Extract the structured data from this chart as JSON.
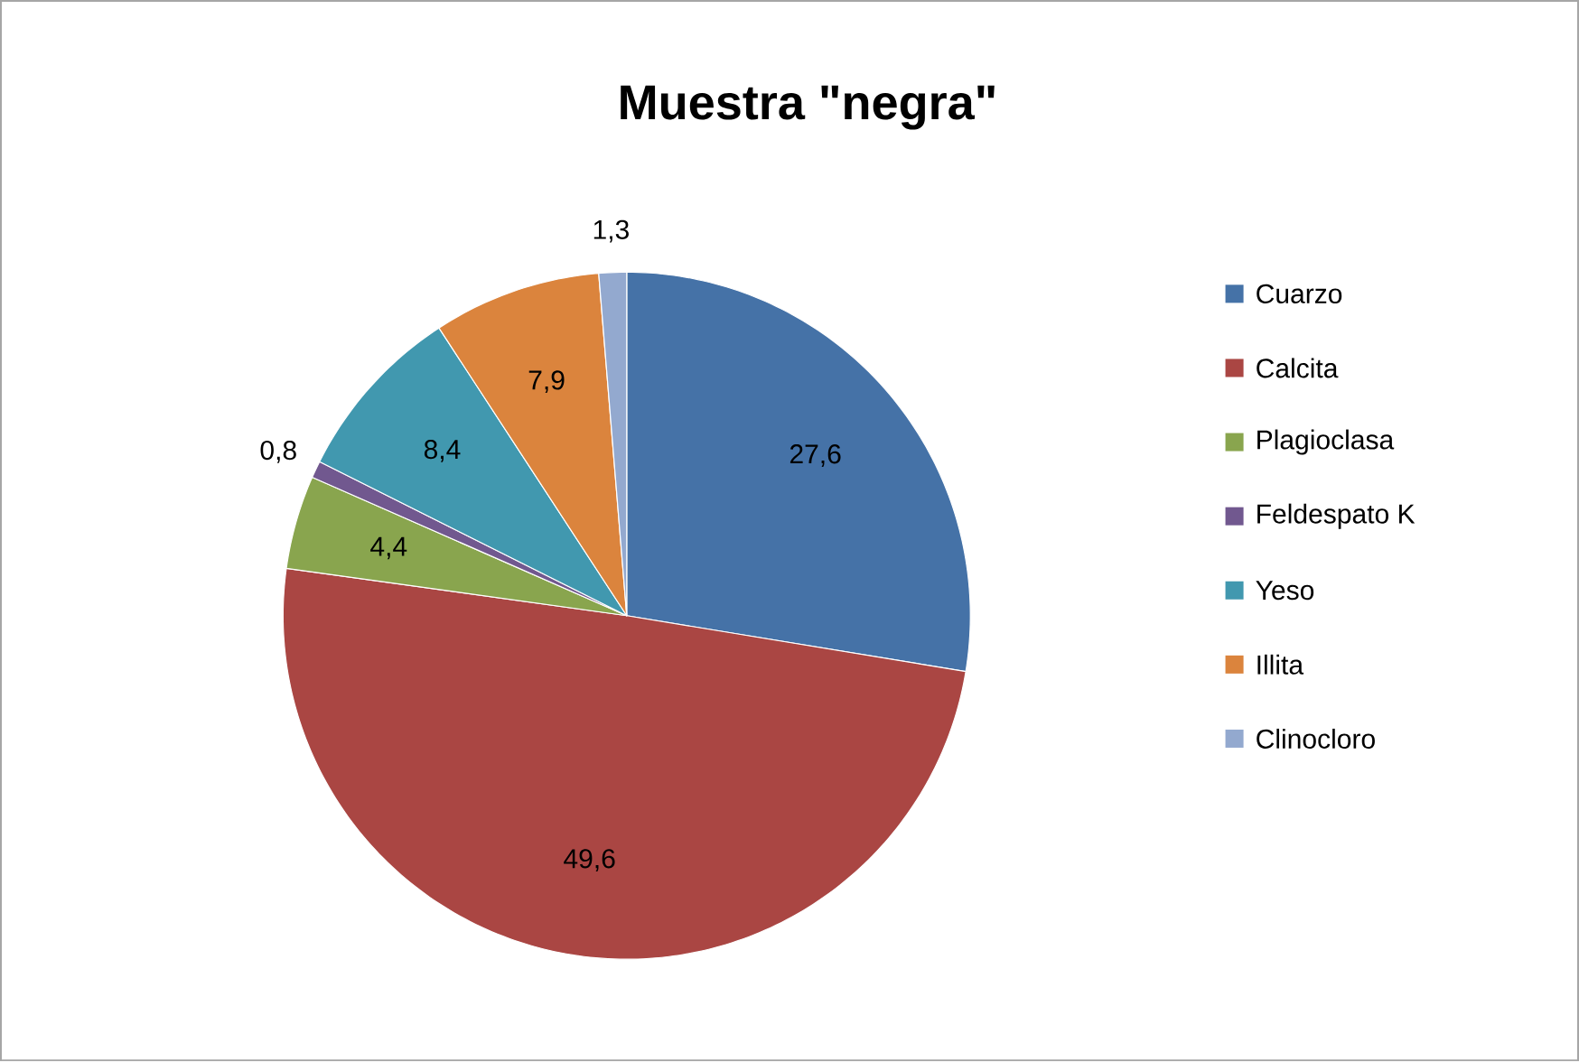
{
  "chart_data": {
    "type": "pie",
    "title": "Muestra \"negra\"",
    "categories": [
      "Cuarzo",
      "Calcita",
      "Plagioclasa",
      "Feldespato K",
      "Yeso",
      "Illita",
      "Clinocloro"
    ],
    "values": [
      27.6,
      49.6,
      4.4,
      0.8,
      8.4,
      7.9,
      1.3
    ],
    "value_labels": [
      "27,6",
      "49,6",
      "4,4",
      "0,8",
      "8,4",
      "7,9",
      "1,3"
    ],
    "colors": [
      "#4572a7",
      "#aa4643",
      "#89a54e",
      "#71588f",
      "#4198af",
      "#db843d",
      "#93a9cf"
    ],
    "legend": "right"
  }
}
